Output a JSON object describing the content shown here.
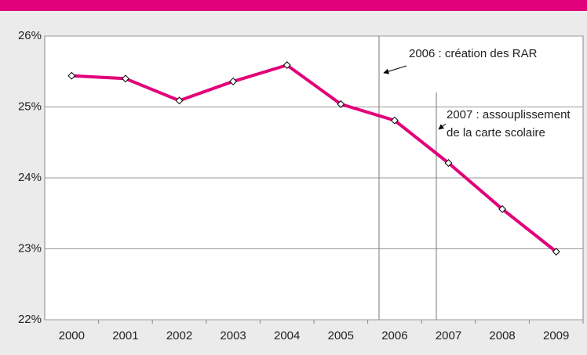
{
  "chart_data": {
    "type": "line",
    "categories": [
      "2000",
      "2001",
      "2002",
      "2003",
      "2004",
      "2005",
      "2006",
      "2007",
      "2008",
      "2009"
    ],
    "series": [
      {
        "color": "#e2007a",
        "values": [
          25.44,
          25.4,
          25.09,
          25.36,
          25.59,
          25.04,
          24.81,
          24.21,
          23.56,
          22.96
        ]
      }
    ],
    "ylim": [
      22,
      26
    ],
    "yticks": [
      {
        "value": 22,
        "label": "22%"
      },
      {
        "value": 23,
        "label": "23%"
      },
      {
        "value": 24,
        "label": "24%"
      },
      {
        "value": 25,
        "label": "25%"
      },
      {
        "value": 26,
        "label": "26%"
      }
    ],
    "grid": true,
    "annotations": [
      "2006 : création des RAR",
      "2007 : assouplissement",
      "de la carte scolaire"
    ]
  }
}
